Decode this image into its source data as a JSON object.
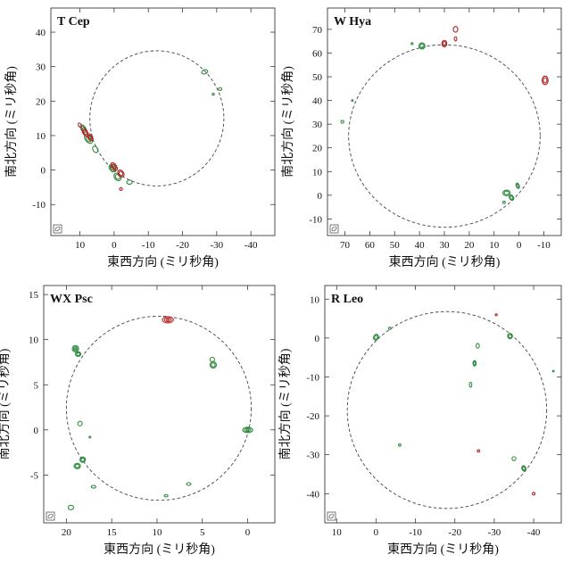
{
  "chart_data": [
    {
      "type": "scatter",
      "title": "T Cep",
      "xlabel": "東西方向 (ミリ秒角)",
      "ylabel": "南北方向 (ミリ秒角)",
      "xlim": [
        18.5,
        -47
      ],
      "ylim": [
        -19,
        47
      ],
      "xticks": [
        "10",
        "0",
        "-10",
        "-20",
        "-30",
        "-40"
      ],
      "xtick_values": [
        10,
        0,
        -10,
        -20,
        -30,
        -40
      ],
      "yticks": [
        "-10",
        "0",
        "10",
        "20",
        "30",
        "40"
      ],
      "ytick_values": [
        -10,
        0,
        10,
        20,
        30,
        40
      ],
      "ring": {
        "cx": -12.5,
        "cy": 15,
        "r": 19.6
      },
      "series": [
        {
          "color": "#2e8b3e",
          "spots": [
            {
              "x": 9,
              "y": 12,
              "rx": 0.7,
              "ry": 1.2,
              "angle": -30,
              "rings": 2
            },
            {
              "x": 7.5,
              "y": 9,
              "rx": 0.9,
              "ry": 1.5,
              "angle": -40,
              "rings": 2
            },
            {
              "x": 5.5,
              "y": 6,
              "rx": 0.7,
              "ry": 1,
              "angle": -30,
              "rings": 1
            },
            {
              "x": 0.5,
              "y": 0.5,
              "rx": 0.8,
              "ry": 1.2,
              "angle": -40,
              "rings": 2
            },
            {
              "x": -1,
              "y": -2,
              "rx": 0.9,
              "ry": 1.2,
              "angle": -40,
              "rings": 2
            },
            {
              "x": -4.5,
              "y": -3.5,
              "rx": 0.8,
              "ry": 0.6,
              "angle": 0,
              "rings": 1
            },
            {
              "x": -26.5,
              "y": 28.5,
              "rx": 0.9,
              "ry": 0.6,
              "angle": -20,
              "rings": 1
            },
            {
              "x": -31,
              "y": 23.5,
              "rx": 0.5,
              "ry": 0.4,
              "angle": 0,
              "rings": 1
            },
            {
              "x": -29,
              "y": 22,
              "rx": 0.3,
              "ry": 0.3,
              "angle": 0,
              "rings": 1
            }
          ]
        },
        {
          "color": "#b22222",
          "spots": [
            {
              "x": 10,
              "y": 13,
              "rx": 0.4,
              "ry": 0.7,
              "angle": -30,
              "rings": 1
            },
            {
              "x": 8.5,
              "y": 11,
              "rx": 0.7,
              "ry": 1.3,
              "angle": -30,
              "rings": 2
            },
            {
              "x": 7,
              "y": 9.5,
              "rx": 0.7,
              "ry": 1.1,
              "angle": -30,
              "rings": 2
            },
            {
              "x": 0,
              "y": 1,
              "rx": 0.7,
              "ry": 1.3,
              "angle": -35,
              "rings": 2
            },
            {
              "x": -2,
              "y": -1,
              "rx": 0.8,
              "ry": 1.1,
              "angle": -35,
              "rings": 2
            },
            {
              "x": -2,
              "y": -5.5,
              "rx": 0.4,
              "ry": 0.4,
              "angle": 0,
              "rings": 1
            }
          ]
        }
      ]
    },
    {
      "type": "scatter",
      "title": "W Hya",
      "xlabel": "東西方向 (ミリ秒角)",
      "ylabel": "南北方向 (ミリ秒角)",
      "xlim": [
        77,
        -17
      ],
      "ylim": [
        -17,
        79
      ],
      "xticks": [
        "70",
        "60",
        "50",
        "40",
        "30",
        "20",
        "10",
        "0",
        "-10"
      ],
      "xtick_values": [
        70,
        60,
        50,
        40,
        30,
        20,
        10,
        0,
        -10
      ],
      "yticks": [
        "-10",
        "0",
        "10",
        "20",
        "30",
        "40",
        "50",
        "60",
        "70"
      ],
      "ytick_values": [
        -10,
        0,
        10,
        20,
        30,
        40,
        50,
        60,
        70
      ],
      "ring": {
        "cx": 30,
        "cy": 25,
        "r": 38.5
      },
      "series": [
        {
          "color": "#2e8b3e",
          "spots": [
            {
              "x": 39,
              "y": 63,
              "rx": 1.2,
              "ry": 1.3,
              "angle": 0,
              "rings": 2
            },
            {
              "x": 43,
              "y": 64,
              "rx": 0.4,
              "ry": 0.4,
              "angle": 0,
              "rings": 1
            },
            {
              "x": 5,
              "y": 1,
              "rx": 1.5,
              "ry": 1.2,
              "angle": 0,
              "rings": 2
            },
            {
              "x": 3,
              "y": -1,
              "rx": 0.8,
              "ry": 1.2,
              "angle": -30,
              "rings": 2
            },
            {
              "x": 0.5,
              "y": 4,
              "rx": 0.6,
              "ry": 1.2,
              "angle": -20,
              "rings": 2
            },
            {
              "x": 6,
              "y": -3,
              "rx": 0.5,
              "ry": 0.5,
              "angle": 0,
              "rings": 1
            },
            {
              "x": 71,
              "y": 31,
              "rx": 0.6,
              "ry": 0.6,
              "angle": 0,
              "rings": 1
            },
            {
              "x": 67,
              "y": 40,
              "rx": 0.3,
              "ry": 0.3,
              "angle": 0,
              "rings": 1
            }
          ]
        },
        {
          "color": "#b22222",
          "spots": [
            {
              "x": 30,
              "y": 64,
              "rx": 1,
              "ry": 1.4,
              "angle": 0,
              "rings": 2
            },
            {
              "x": 25.5,
              "y": 70,
              "rx": 0.9,
              "ry": 1.2,
              "angle": 0,
              "rings": 1
            },
            {
              "x": 25.5,
              "y": 66,
              "rx": 0.5,
              "ry": 0.9,
              "angle": 0,
              "rings": 1
            },
            {
              "x": -10.5,
              "y": 48.5,
              "rx": 1.2,
              "ry": 1.8,
              "angle": 0,
              "rings": 2
            }
          ]
        }
      ]
    },
    {
      "type": "scatter",
      "title": "WX Psc",
      "xlabel": "東西方向 (ミリ秒角)",
      "ylabel": "南北方向 (ミリ秒角)",
      "xlim": [
        22.5,
        -3
      ],
      "ylim": [
        -10.3,
        16
      ],
      "xticks": [
        "20",
        "15",
        "10",
        "5",
        "0"
      ],
      "xtick_values": [
        20,
        15,
        10,
        5,
        0
      ],
      "yticks": [
        "-5",
        "0",
        "5",
        "10",
        "15"
      ],
      "ytick_values": [
        -5,
        0,
        5,
        10,
        15
      ],
      "ring": {
        "cx": 9.8,
        "cy": 2.4,
        "r": 10.2
      },
      "series": [
        {
          "color": "#2e8b3e",
          "spots": [
            {
              "x": 19,
              "y": 9,
              "rx": 0.35,
              "ry": 0.35,
              "angle": 0,
              "rings": 3
            },
            {
              "x": 18.7,
              "y": 8.4,
              "rx": 0.3,
              "ry": 0.25,
              "angle": 0,
              "rings": 2
            },
            {
              "x": 3.8,
              "y": 7.2,
              "rx": 0.35,
              "ry": 0.35,
              "angle": 0,
              "rings": 2
            },
            {
              "x": 3.9,
              "y": 7.8,
              "rx": 0.25,
              "ry": 0.25,
              "angle": 0,
              "rings": 1
            },
            {
              "x": 0,
              "y": 0,
              "rx": 0.55,
              "ry": 0.3,
              "angle": 0,
              "rings": 3
            },
            {
              "x": 18.5,
              "y": 0.7,
              "rx": 0.25,
              "ry": 0.25,
              "angle": 0,
              "rings": 1
            },
            {
              "x": 18.2,
              "y": -3.3,
              "rx": 0.3,
              "ry": 0.3,
              "angle": 0,
              "rings": 2
            },
            {
              "x": 18.8,
              "y": -4,
              "rx": 0.35,
              "ry": 0.3,
              "angle": 0,
              "rings": 2
            },
            {
              "x": 17,
              "y": -6.3,
              "rx": 0.25,
              "ry": 0.15,
              "angle": 0,
              "rings": 1
            },
            {
              "x": 6.5,
              "y": -6,
              "rx": 0.25,
              "ry": 0.15,
              "angle": 0,
              "rings": 1
            },
            {
              "x": 19.5,
              "y": -8.6,
              "rx": 0.3,
              "ry": 0.25,
              "angle": 0,
              "rings": 1
            },
            {
              "x": 9,
              "y": -7.3,
              "rx": 0.2,
              "ry": 0.12,
              "angle": 0,
              "rings": 1
            },
            {
              "x": 17.4,
              "y": -0.8,
              "rx": 0.1,
              "ry": 0.1,
              "angle": 0,
              "rings": 1
            }
          ]
        },
        {
          "color": "#b22222",
          "spots": [
            {
              "x": 8.8,
              "y": 12.2,
              "rx": 0.6,
              "ry": 0.35,
              "angle": 0,
              "rings": 3
            }
          ]
        }
      ]
    },
    {
      "type": "scatter",
      "title": "R Leo",
      "xlabel": "東西方向 (ミリ秒角)",
      "ylabel": "南北方向 (ミリ秒角)",
      "xlim": [
        13,
        -47
      ],
      "ylim": [
        -47.5,
        13.5
      ],
      "xticks": [
        "10",
        "0",
        "-10",
        "-20",
        "-30",
        "-40"
      ],
      "xtick_values": [
        10,
        0,
        -10,
        -20,
        -30,
        -40
      ],
      "yticks": [
        "-40",
        "-30",
        "-20",
        "-10",
        "0",
        "10"
      ],
      "ytick_values": [
        -40,
        -30,
        -20,
        -10,
        0,
        10
      ],
      "ring": {
        "cx": -18,
        "cy": -18.5,
        "r": 25.3
      },
      "series": [
        {
          "color": "#2e8b3e",
          "spots": [
            {
              "x": 0,
              "y": 0.2,
              "rx": 0.6,
              "ry": 0.8,
              "angle": 20,
              "rings": 2
            },
            {
              "x": -3.5,
              "y": 2.5,
              "rx": 0.3,
              "ry": 0.3,
              "angle": 0,
              "rings": 1
            },
            {
              "x": -25.8,
              "y": -2,
              "rx": 0.4,
              "ry": 0.6,
              "angle": 0,
              "rings": 1
            },
            {
              "x": -25,
              "y": -6.5,
              "rx": 0.4,
              "ry": 0.7,
              "angle": 0,
              "rings": 2
            },
            {
              "x": -24,
              "y": -12,
              "rx": 0.3,
              "ry": 0.6,
              "angle": 0,
              "rings": 1
            },
            {
              "x": -34,
              "y": 0.5,
              "rx": 0.6,
              "ry": 0.7,
              "angle": 0,
              "rings": 2
            },
            {
              "x": -35,
              "y": -31,
              "rx": 0.5,
              "ry": 0.5,
              "angle": 0,
              "rings": 1
            },
            {
              "x": -37.5,
              "y": -33.5,
              "rx": 0.5,
              "ry": 0.7,
              "angle": -20,
              "rings": 2
            },
            {
              "x": -6,
              "y": -27.5,
              "rx": 0.3,
              "ry": 0.3,
              "angle": 0,
              "rings": 1
            },
            {
              "x": -45,
              "y": -8.5,
              "rx": 0.2,
              "ry": 0.2,
              "angle": 0,
              "rings": 1
            }
          ]
        },
        {
          "color": "#b22222",
          "spots": [
            {
              "x": -26,
              "y": -29,
              "rx": 0.3,
              "ry": 0.3,
              "angle": 0,
              "rings": 1
            },
            {
              "x": -40,
              "y": -40,
              "rx": 0.35,
              "ry": 0.35,
              "angle": 0,
              "rings": 1
            },
            {
              "x": -30.5,
              "y": 6,
              "rx": 0.25,
              "ry": 0.25,
              "angle": 0,
              "rings": 1
            }
          ]
        }
      ]
    }
  ]
}
